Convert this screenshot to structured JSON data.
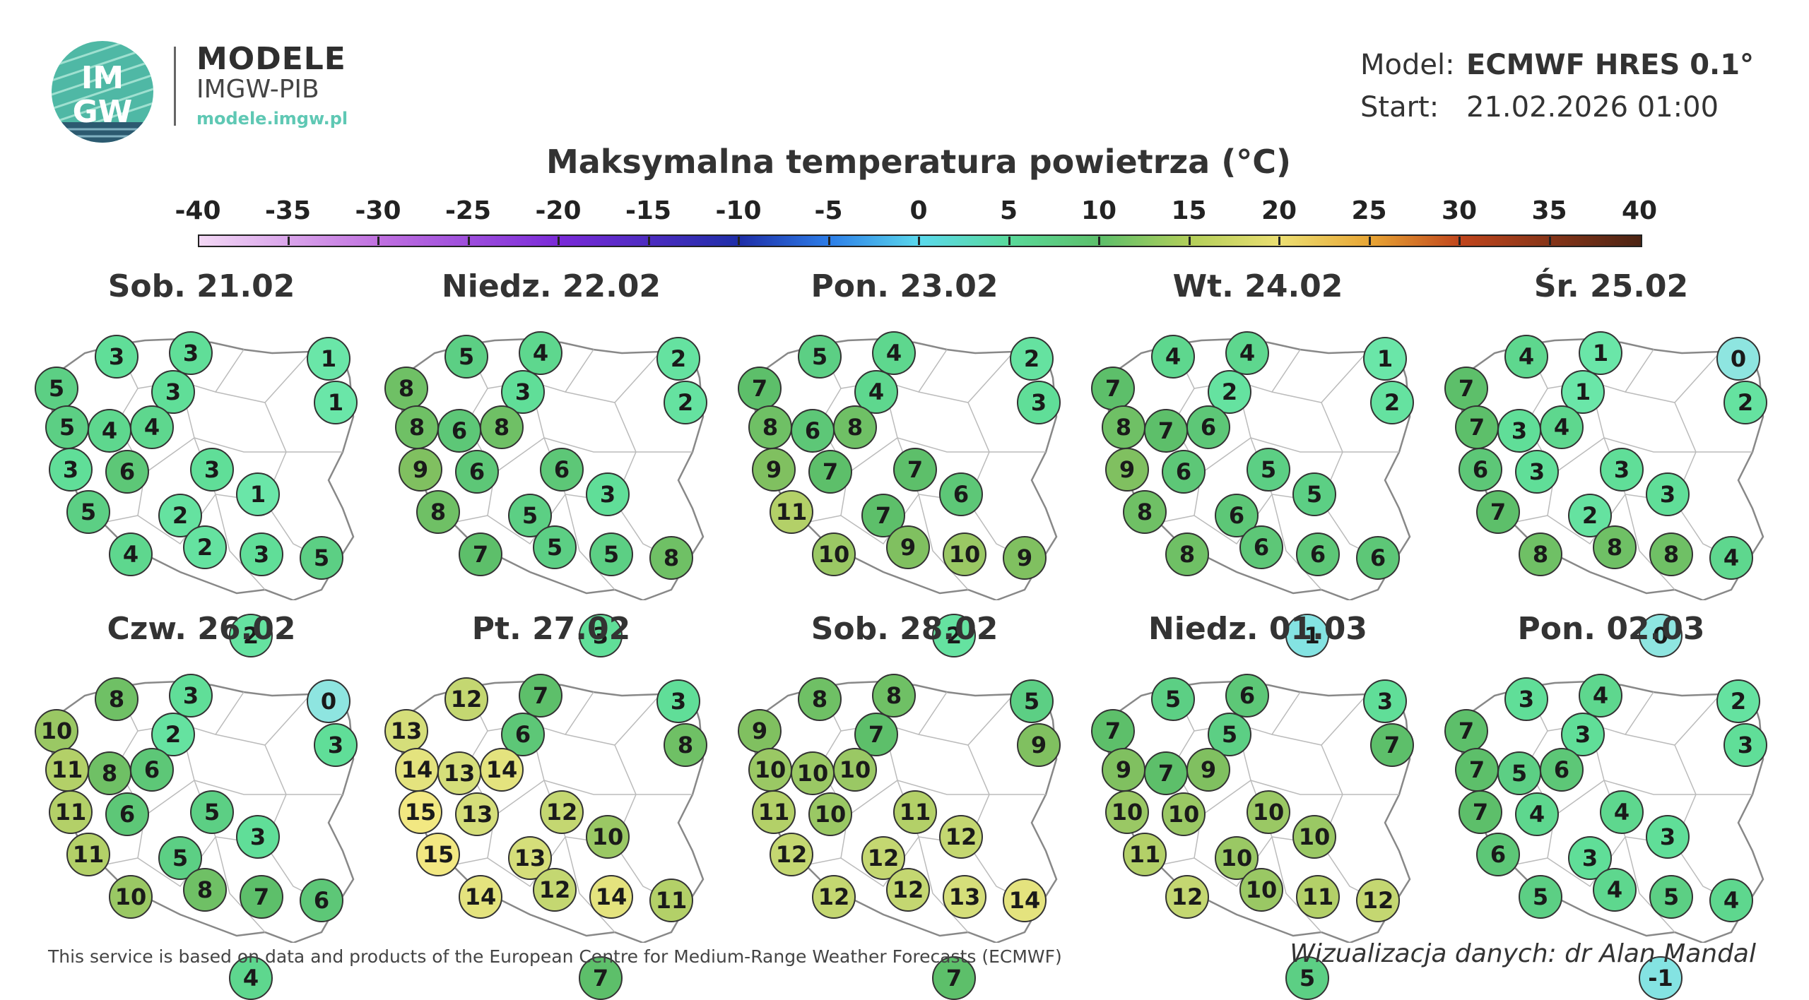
{
  "brand": {
    "logo_text_top": "IM",
    "logo_text_bottom": "GW",
    "title": "MODELE",
    "subtitle": "IMGW-PIB",
    "url": "modele.imgw.pl"
  },
  "model": {
    "model_label": "Model:",
    "model_value": "ECMWF HRES 0.1°",
    "start_label": "Start:",
    "start_value": "21.02.2026 01:00"
  },
  "title": "Maksymalna temperatura powietrza (°C)",
  "colorbar": {
    "labels": [
      "-40",
      "-35",
      "-30",
      "-25",
      "-20",
      "-15",
      "-10",
      "-5",
      "0",
      "5",
      "10",
      "15",
      "20",
      "25",
      "30",
      "35",
      "40"
    ],
    "min": -40,
    "max": 40,
    "colors": [
      "#f3d8f5",
      "#c070e0",
      "#7a2ad8",
      "#1e2ea8",
      "#2d7ee8",
      "#5ad9ec",
      "#59d99a",
      "#5dbf6a",
      "#b3cf5a",
      "#ecdf72",
      "#e8a534",
      "#c0451c",
      "#4c2414"
    ]
  },
  "panels": [
    {
      "day": "Sob. 21.02",
      "values": [
        3,
        3,
        1,
        5,
        3,
        1,
        5,
        4,
        4,
        3,
        6,
        3,
        5,
        2,
        1,
        4,
        2,
        3,
        5,
        2
      ]
    },
    {
      "day": "Niedz. 22.02",
      "values": [
        5,
        4,
        2,
        8,
        3,
        2,
        8,
        8,
        6,
        9,
        6,
        6,
        8,
        5,
        3,
        7,
        5,
        5,
        8,
        3
      ]
    },
    {
      "day": "Pon. 23.02",
      "values": [
        5,
        4,
        2,
        7,
        4,
        3,
        8,
        8,
        6,
        9,
        7,
        7,
        11,
        7,
        6,
        10,
        9,
        10,
        9,
        2
      ]
    },
    {
      "day": "Wt. 24.02",
      "values": [
        4,
        4,
        1,
        7,
        2,
        2,
        8,
        6,
        7,
        9,
        6,
        5,
        8,
        6,
        5,
        8,
        6,
        6,
        6,
        -1
      ]
    },
    {
      "day": "Śr. 25.02",
      "values": [
        4,
        1,
        0,
        7,
        1,
        2,
        7,
        4,
        3,
        6,
        3,
        3,
        7,
        2,
        3,
        8,
        8,
        8,
        4,
        0
      ]
    },
    {
      "day": "Czw. 26.02",
      "values": [
        8,
        3,
        0,
        10,
        2,
        3,
        11,
        6,
        8,
        11,
        6,
        5,
        11,
        5,
        3,
        10,
        8,
        7,
        6,
        4
      ]
    },
    {
      "day": "Pt. 27.02",
      "values": [
        12,
        7,
        3,
        13,
        6,
        8,
        14,
        14,
        13,
        15,
        13,
        12,
        15,
        13,
        10,
        14,
        12,
        14,
        11,
        7
      ]
    },
    {
      "day": "Sob. 28.02",
      "values": [
        8,
        8,
        5,
        9,
        7,
        9,
        10,
        10,
        10,
        11,
        10,
        11,
        12,
        12,
        12,
        12,
        12,
        13,
        14,
        7
      ]
    },
    {
      "day": "Niedz. 01.03",
      "values": [
        5,
        6,
        3,
        7,
        5,
        7,
        9,
        9,
        7,
        10,
        10,
        10,
        11,
        10,
        10,
        12,
        10,
        11,
        12,
        5
      ]
    },
    {
      "day": "Pon. 02.03",
      "values": [
        3,
        4,
        2,
        7,
        3,
        3,
        7,
        6,
        5,
        7,
        4,
        4,
        6,
        3,
        3,
        5,
        4,
        5,
        4,
        -1
      ]
    }
  ],
  "footer": {
    "credit": "This service is based on data and products of the European Centre for Medium-Range Weather Forecasts (ECMWF)",
    "author": "Wizualizacja danych: dr Alan Mandal"
  }
}
